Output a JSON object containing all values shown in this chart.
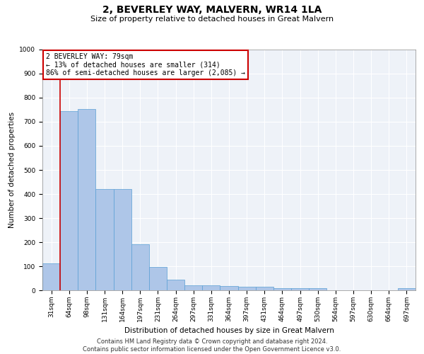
{
  "title": "2, BEVERLEY WAY, MALVERN, WR14 1LA",
  "subtitle": "Size of property relative to detached houses in Great Malvern",
  "xlabel": "Distribution of detached houses by size in Great Malvern",
  "ylabel": "Number of detached properties",
  "footer_line1": "Contains HM Land Registry data © Crown copyright and database right 2024.",
  "footer_line2": "Contains public sector information licensed under the Open Government Licence v3.0.",
  "categories": [
    "31sqm",
    "64sqm",
    "98sqm",
    "131sqm",
    "164sqm",
    "197sqm",
    "231sqm",
    "264sqm",
    "297sqm",
    "331sqm",
    "364sqm",
    "397sqm",
    "431sqm",
    "464sqm",
    "497sqm",
    "530sqm",
    "564sqm",
    "597sqm",
    "630sqm",
    "664sqm",
    "697sqm"
  ],
  "values": [
    113,
    745,
    752,
    420,
    420,
    190,
    97,
    44,
    22,
    22,
    17,
    15,
    15,
    8,
    8,
    8,
    0,
    0,
    0,
    0,
    10
  ],
  "bar_color": "#aec6e8",
  "bar_edge_color": "#5a9fd4",
  "annotation_box_text": "2 BEVERLEY WAY: 79sqm\n← 13% of detached houses are smaller (314)\n86% of semi-detached houses are larger (2,085) →",
  "annotation_box_edge_color": "#cc0000",
  "vline_x": 0.5,
  "vline_color": "#cc0000",
  "ylim": [
    0,
    1000
  ],
  "yticks": [
    0,
    100,
    200,
    300,
    400,
    500,
    600,
    700,
    800,
    900,
    1000
  ],
  "background_color": "#eef2f8",
  "grid_color": "#ffffff",
  "title_fontsize": 10,
  "subtitle_fontsize": 8,
  "axis_label_fontsize": 7.5,
  "tick_fontsize": 6.5,
  "annotation_fontsize": 7,
  "footer_fontsize": 6
}
